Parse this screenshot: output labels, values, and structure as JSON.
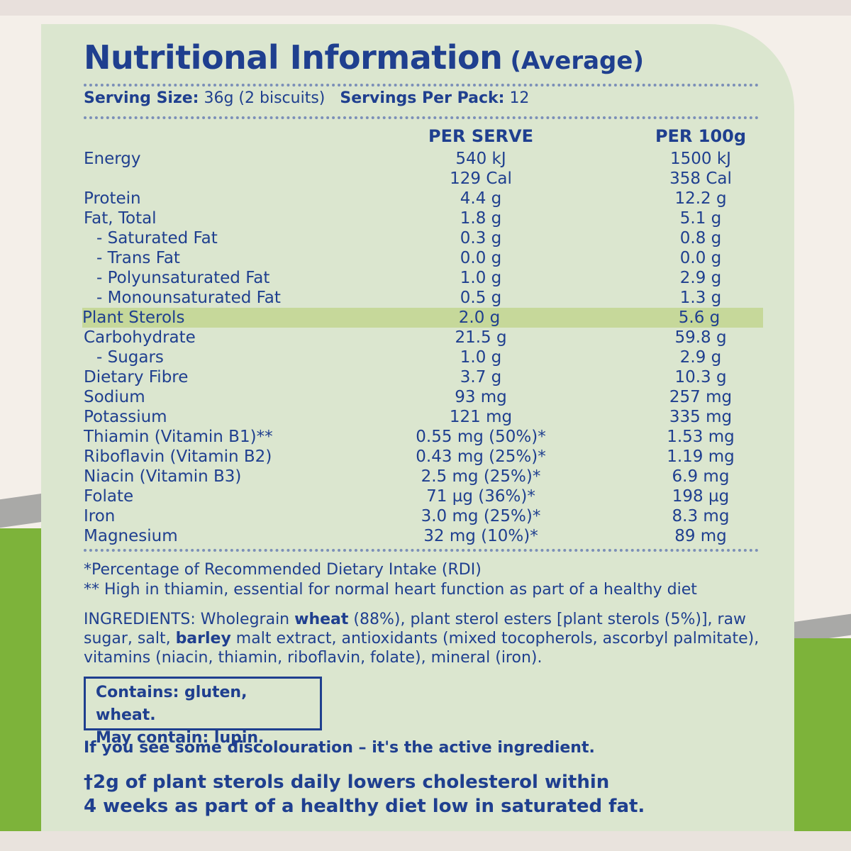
{
  "title": {
    "main": "Nutritional Information",
    "sub": "(Average)"
  },
  "serving": {
    "size_label": "Serving Size:",
    "size_value": "36g (2 biscuits)",
    "pack_label": "Servings Per Pack:",
    "pack_value": "12"
  },
  "columns": {
    "per_serve": "PER SERVE",
    "per_100g": "PER 100g"
  },
  "rows": [
    {
      "label": "Energy",
      "serve": "540 kJ",
      "h100": "1500 kJ",
      "sub": false
    },
    {
      "label": "",
      "serve": "129 Cal",
      "h100": "358 Cal",
      "sub": false
    },
    {
      "label": "Protein",
      "serve": "4.4 g",
      "h100": "12.2 g",
      "sub": false
    },
    {
      "label": "Fat, Total",
      "serve": "1.8 g",
      "h100": "5.1 g",
      "sub": false
    },
    {
      "label": "- Saturated Fat",
      "serve": "0.3 g",
      "h100": "0.8 g",
      "sub": true
    },
    {
      "label": "- Trans Fat",
      "serve": "0.0 g",
      "h100": "0.0 g",
      "sub": true
    },
    {
      "label": "- Polyunsaturated Fat",
      "serve": "1.0 g",
      "h100": "2.9 g",
      "sub": true
    },
    {
      "label": "- Monounsaturated Fat",
      "serve": "0.5 g",
      "h100": "1.3 g",
      "sub": true
    },
    {
      "label": "Plant Sterols",
      "serve": "2.0 g",
      "h100": "5.6 g",
      "sub": false,
      "highlight": true
    },
    {
      "label": "Carbohydrate",
      "serve": "21.5 g",
      "h100": "59.8 g",
      "sub": false
    },
    {
      "label": "- Sugars",
      "serve": "1.0 g",
      "h100": "2.9 g",
      "sub": true
    },
    {
      "label": "Dietary Fibre",
      "serve": "3.7 g",
      "h100": "10.3 g",
      "sub": false
    },
    {
      "label": "Sodium",
      "serve": "93 mg",
      "h100": "257 mg",
      "sub": false
    },
    {
      "label": "Potassium",
      "serve": "121 mg",
      "h100": "335 mg",
      "sub": false
    },
    {
      "label": "Thiamin (Vitamin B1)**",
      "serve": "0.55 mg (50%)*",
      "h100": "1.53 mg",
      "sub": false
    },
    {
      "label": "Riboflavin (Vitamin B2)",
      "serve": "0.43 mg (25%)*",
      "h100": "1.19 mg",
      "sub": false
    },
    {
      "label": "Niacin (Vitamin B3)",
      "serve": "2.5 mg (25%)*",
      "h100": "6.9 mg",
      "sub": false
    },
    {
      "label": "Folate",
      "serve": "71 µg (36%)*",
      "h100": "198 µg",
      "sub": false
    },
    {
      "label": "Iron",
      "serve": "3.0 mg (25%)*",
      "h100": "8.3 mg",
      "sub": false
    },
    {
      "label": "Magnesium",
      "serve": "32 mg (10%)*",
      "h100": "89 mg",
      "sub": false
    }
  ],
  "footnotes": {
    "rdi": "*Percentage of Recommended Dietary Intake (RDI)",
    "thiamin": "** High in thiamin, essential for normal heart function as part of a healthy diet"
  },
  "ingredients": {
    "p1": "INGREDIENTS: Wholegrain ",
    "b1": "wheat",
    "p2": " (88%), plant sterol esters [plant sterols (5%)], raw sugar, salt, ",
    "b2": "barley",
    "p3": " malt extract, antioxidants (mixed tocopherols, ascorbyl palmitate), vitamins (niacin, thiamin, riboflavin, folate), mineral (iron)."
  },
  "allergens": {
    "contains": "Contains: gluten, wheat.",
    "may_contain": "May contain: lupin."
  },
  "discolouration": "If you see some discolouration – it's the active ingredient.",
  "claim": {
    "line1": "†2g of plant sterols daily lowers cholesterol within",
    "line2": "4 weeks as part of a healthy diet low in saturated fat."
  },
  "colors": {
    "text": "#1f3f8f",
    "panel": "#dbe6cf",
    "highlight": "#c6d89a",
    "green": "#7db33a"
  }
}
